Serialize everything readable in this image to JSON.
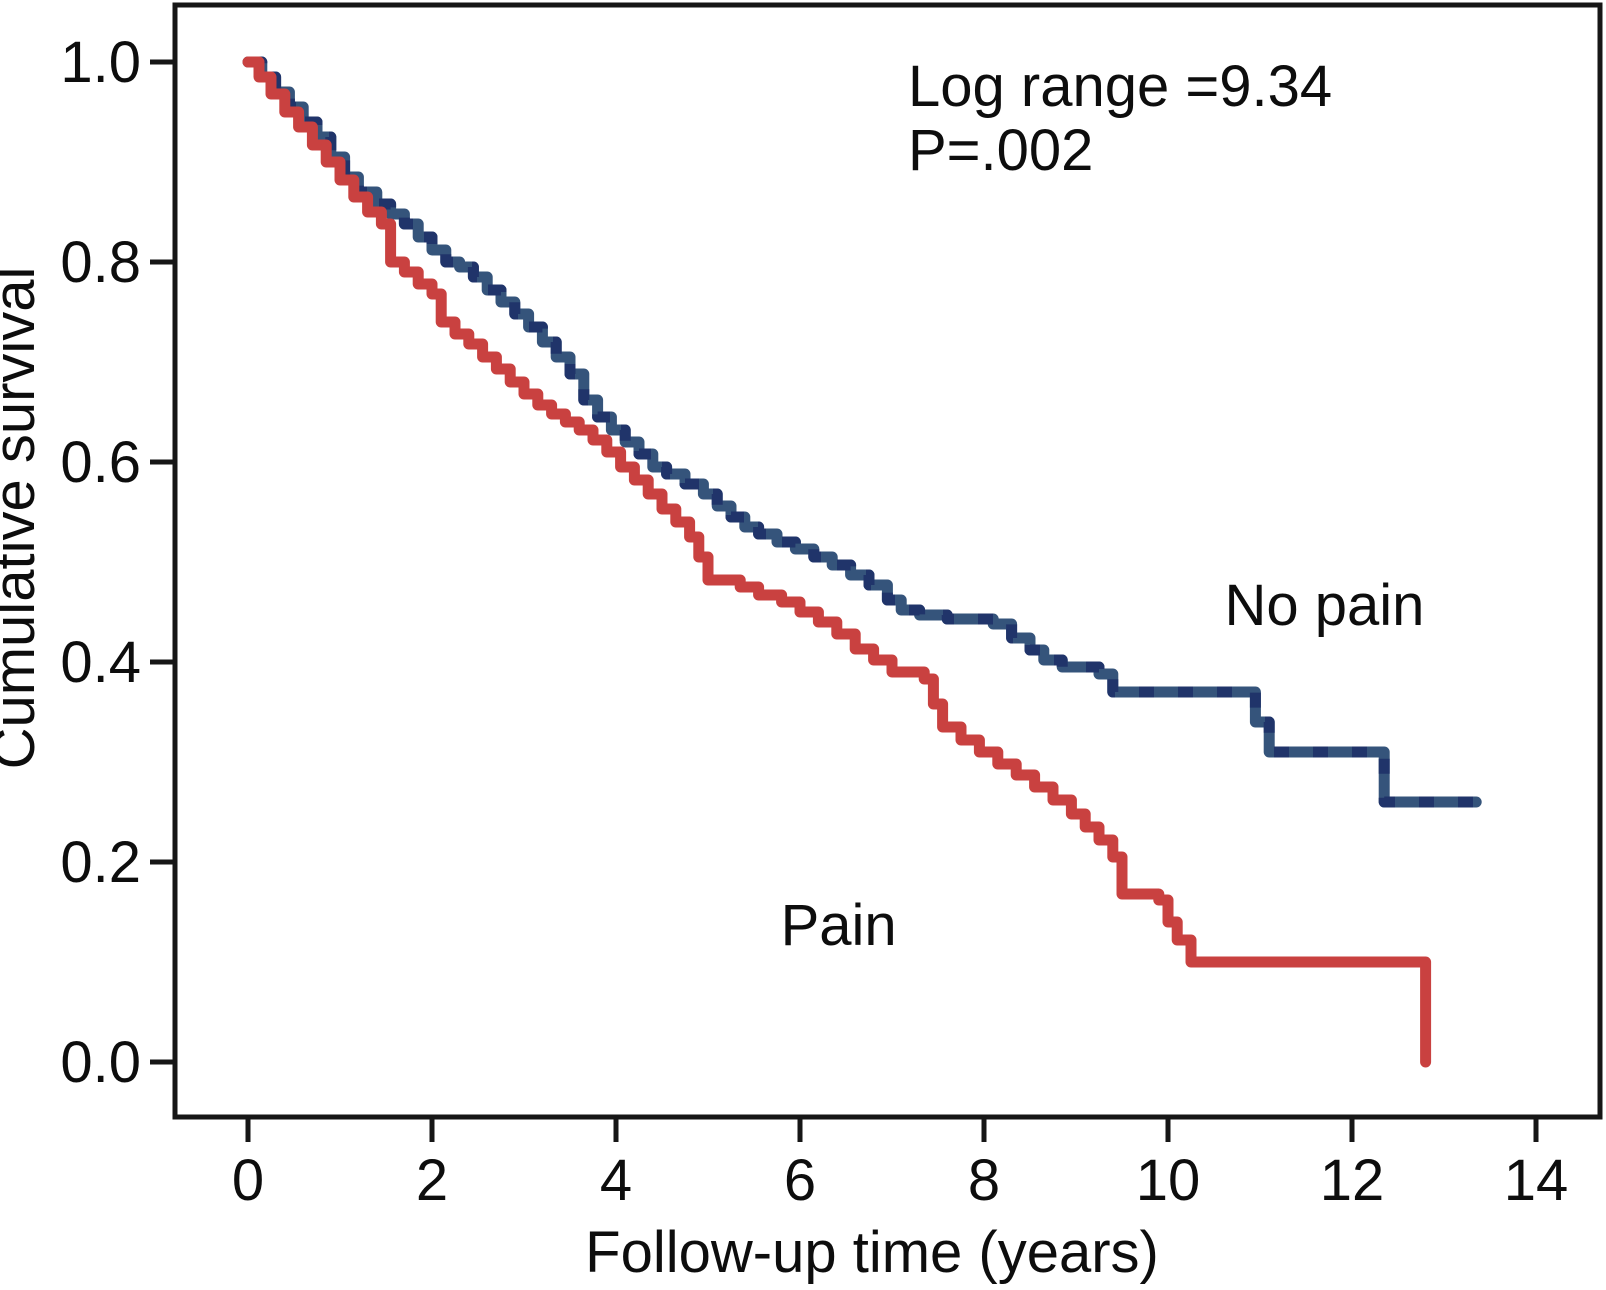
{
  "chart_data": {
    "type": "line",
    "subtype": "kaplan-meier-step",
    "title": "",
    "xlabel": "Follow-up time (years)",
    "ylabel": "Cumulative survival",
    "xlim": [
      0,
      14
    ],
    "ylim": [
      0.0,
      1.0
    ],
    "grid": false,
    "legend_position": "inline-labels",
    "annotation": {
      "line1": "Log range =9.34",
      "line2": "P=.002"
    },
    "xticks": [
      {
        "label": "0",
        "value": 0
      },
      {
        "label": "2",
        "value": 2
      },
      {
        "label": "4",
        "value": 4
      },
      {
        "label": "6",
        "value": 6
      },
      {
        "label": "8",
        "value": 8
      },
      {
        "label": "10",
        "value": 10
      },
      {
        "label": "12",
        "value": 12
      },
      {
        "label": "14",
        "value": 14
      }
    ],
    "yticks": [
      {
        "label": "1.0",
        "value": 1.0
      },
      {
        "label": "0.8",
        "value": 0.8
      },
      {
        "label": "0.6",
        "value": 0.6
      },
      {
        "label": "0.4",
        "value": 0.4
      },
      {
        "label": "0.2",
        "value": 0.2
      },
      {
        "label": "0.0",
        "value": 0.0
      }
    ],
    "series": [
      {
        "name": "No pain",
        "color": "#35547b",
        "censor_mark_color": "#1e3168",
        "label_anchor": {
          "x": 11.7,
          "y": 0.437
        },
        "points": [
          [
            0,
            1.0
          ],
          [
            0.15,
            0.985
          ],
          [
            0.3,
            0.97
          ],
          [
            0.45,
            0.955
          ],
          [
            0.6,
            0.94
          ],
          [
            0.75,
            0.925
          ],
          [
            0.9,
            0.905
          ],
          [
            1.05,
            0.885
          ],
          [
            1.2,
            0.87
          ],
          [
            1.4,
            0.858
          ],
          [
            1.55,
            0.848
          ],
          [
            1.7,
            0.838
          ],
          [
            1.85,
            0.825
          ],
          [
            2.0,
            0.812
          ],
          [
            2.15,
            0.8
          ],
          [
            2.3,
            0.795
          ],
          [
            2.45,
            0.785
          ],
          [
            2.6,
            0.772
          ],
          [
            2.75,
            0.76
          ],
          [
            2.9,
            0.748
          ],
          [
            3.05,
            0.735
          ],
          [
            3.2,
            0.72
          ],
          [
            3.35,
            0.705
          ],
          [
            3.5,
            0.688
          ],
          [
            3.65,
            0.662
          ],
          [
            3.8,
            0.645
          ],
          [
            3.95,
            0.632
          ],
          [
            4.1,
            0.62
          ],
          [
            4.25,
            0.608
          ],
          [
            4.4,
            0.595
          ],
          [
            4.55,
            0.588
          ],
          [
            4.75,
            0.578
          ],
          [
            4.95,
            0.568
          ],
          [
            5.1,
            0.556
          ],
          [
            5.25,
            0.545
          ],
          [
            5.4,
            0.535
          ],
          [
            5.55,
            0.528
          ],
          [
            5.75,
            0.52
          ],
          [
            5.95,
            0.513
          ],
          [
            6.15,
            0.505
          ],
          [
            6.35,
            0.497
          ],
          [
            6.55,
            0.487
          ],
          [
            6.75,
            0.477
          ],
          [
            6.95,
            0.462
          ],
          [
            7.1,
            0.452
          ],
          [
            7.3,
            0.447
          ],
          [
            7.6,
            0.443
          ],
          [
            8.1,
            0.438
          ],
          [
            8.3,
            0.424
          ],
          [
            8.5,
            0.412
          ],
          [
            8.65,
            0.402
          ],
          [
            8.85,
            0.395
          ],
          [
            9.25,
            0.388
          ],
          [
            9.4,
            0.37
          ],
          [
            10.95,
            0.34
          ],
          [
            11.1,
            0.31
          ],
          [
            12.35,
            0.26
          ],
          [
            13.35,
            0.26
          ]
        ]
      },
      {
        "name": "Pain",
        "color": "#c94140",
        "censor_mark_color": "#c94140",
        "label_anchor": {
          "x": 6.42,
          "y": 0.117
        },
        "points": [
          [
            0,
            1.0
          ],
          [
            0.12,
            0.985
          ],
          [
            0.25,
            0.968
          ],
          [
            0.4,
            0.95
          ],
          [
            0.55,
            0.935
          ],
          [
            0.7,
            0.917
          ],
          [
            0.85,
            0.9
          ],
          [
            1.0,
            0.882
          ],
          [
            1.15,
            0.865
          ],
          [
            1.3,
            0.85
          ],
          [
            1.45,
            0.838
          ],
          [
            1.55,
            0.8
          ],
          [
            1.7,
            0.79
          ],
          [
            1.85,
            0.778
          ],
          [
            2.0,
            0.768
          ],
          [
            2.1,
            0.74
          ],
          [
            2.25,
            0.728
          ],
          [
            2.4,
            0.718
          ],
          [
            2.55,
            0.705
          ],
          [
            2.7,
            0.693
          ],
          [
            2.85,
            0.68
          ],
          [
            3.0,
            0.668
          ],
          [
            3.15,
            0.657
          ],
          [
            3.3,
            0.648
          ],
          [
            3.45,
            0.64
          ],
          [
            3.6,
            0.632
          ],
          [
            3.75,
            0.622
          ],
          [
            3.9,
            0.61
          ],
          [
            4.05,
            0.595
          ],
          [
            4.2,
            0.582
          ],
          [
            4.35,
            0.568
          ],
          [
            4.5,
            0.553
          ],
          [
            4.65,
            0.54
          ],
          [
            4.8,
            0.525
          ],
          [
            4.9,
            0.505
          ],
          [
            5.0,
            0.482
          ],
          [
            5.35,
            0.475
          ],
          [
            5.55,
            0.467
          ],
          [
            5.8,
            0.46
          ],
          [
            6.0,
            0.45
          ],
          [
            6.2,
            0.44
          ],
          [
            6.4,
            0.428
          ],
          [
            6.6,
            0.413
          ],
          [
            6.8,
            0.402
          ],
          [
            7.0,
            0.39
          ],
          [
            7.35,
            0.383
          ],
          [
            7.45,
            0.358
          ],
          [
            7.55,
            0.335
          ],
          [
            7.75,
            0.322
          ],
          [
            7.95,
            0.31
          ],
          [
            8.15,
            0.298
          ],
          [
            8.35,
            0.287
          ],
          [
            8.55,
            0.275
          ],
          [
            8.75,
            0.262
          ],
          [
            8.95,
            0.248
          ],
          [
            9.1,
            0.235
          ],
          [
            9.25,
            0.222
          ],
          [
            9.4,
            0.205
          ],
          [
            9.5,
            0.168
          ],
          [
            9.9,
            0.162
          ],
          [
            10.0,
            0.14
          ],
          [
            10.1,
            0.122
          ],
          [
            10.25,
            0.1
          ],
          [
            12.8,
            0.0
          ]
        ]
      }
    ]
  }
}
